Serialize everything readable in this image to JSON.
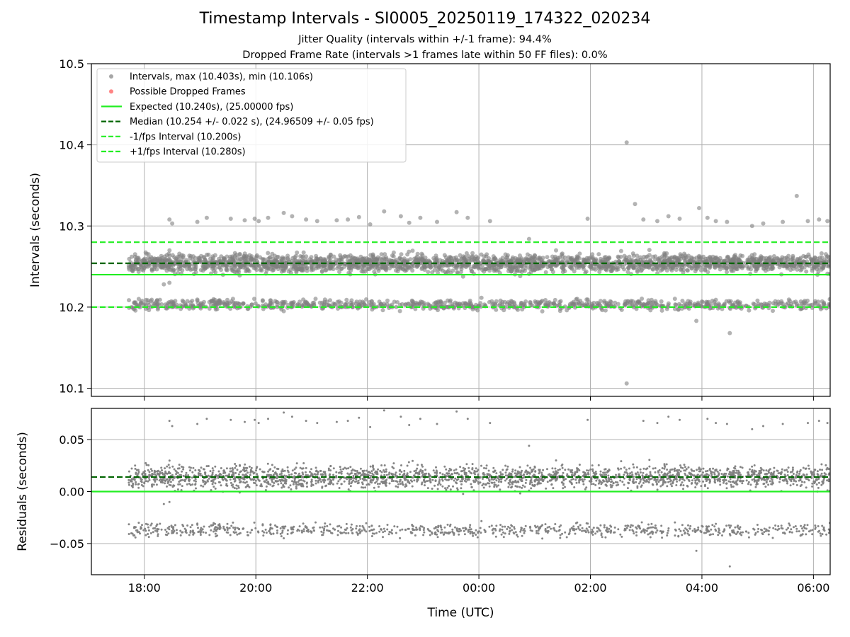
{
  "figure": {
    "title": "Timestamp Intervals - SI0005_20250119_174322_020234",
    "subtitle_1": "Jitter Quality (intervals within +/-1 frame): 94.4%",
    "subtitle_2": "Dropped Frame Rate (intervals >1 frames late within 50 FF files): 0.0%"
  },
  "colors": {
    "points": "#808080",
    "dropped": "#ff5050",
    "expected": "#22ee22",
    "median": "#006400",
    "fps_interval": "#22ee22",
    "grid": "#b0b0b0"
  },
  "chart_data": [
    {
      "type": "scatter",
      "panel": "top",
      "ylabel": "Intervals (seconds)",
      "xlabel": "",
      "x_unit": "hours (UTC, since 2025-01-19 00:00)",
      "xlim": [
        17.05,
        30.3
      ],
      "ylim": [
        10.09,
        10.5
      ],
      "xticks": [
        18,
        20,
        22,
        24,
        26,
        28,
        30
      ],
      "xtick_labels": [
        "18:00",
        "20:00",
        "22:00",
        "00:00",
        "02:00",
        "04:00",
        "06:00"
      ],
      "yticks": [
        10.1,
        10.2,
        10.3,
        10.4,
        10.5
      ],
      "ytick_labels": [
        "10.1",
        "10.2",
        "10.3",
        "10.4",
        "10.5"
      ],
      "grid": true,
      "legend_position": "top-left",
      "legend": [
        {
          "label": "Intervals, max (10.403s), min (10.106s)",
          "kind": "marker",
          "color": "#808080"
        },
        {
          "label": "Possible Dropped Frames",
          "kind": "marker",
          "color": "#ff5050"
        },
        {
          "label": "Expected (10.240s), (25.00000 fps)",
          "kind": "solid",
          "color": "#22ee22"
        },
        {
          "label": "Median (10.254 +/- 0.022 s), (24.96509 +/- 0.05 fps)",
          "kind": "dashed",
          "color": "#006400"
        },
        {
          "label": "-1/fps Interval (10.200s)",
          "kind": "dashed",
          "color": "#22ee22"
        },
        {
          "label": "+1/fps Interval (10.280s)",
          "kind": "dashed",
          "color": "#22ee22"
        }
      ],
      "reference_lines": [
        {
          "name": "Expected",
          "y": 10.24,
          "style": "solid",
          "color": "#22ee22"
        },
        {
          "name": "Median",
          "y": 10.254,
          "style": "dashed",
          "color": "#006400"
        },
        {
          "name": "-1/fps Interval",
          "y": 10.2,
          "style": "dashed",
          "color": "#22ee22"
        },
        {
          "name": "+1/fps Interval",
          "y": 10.28,
          "style": "dashed",
          "color": "#22ee22"
        }
      ],
      "series": [
        {
          "name": "Intervals",
          "x_range": [
            17.72,
            30.3
          ],
          "main_band": {
            "center": 10.254,
            "spread": 0.012,
            "approx_count": 2300
          },
          "lower_band": {
            "center": 10.203,
            "spread": 0.007,
            "approx_count": 850
          },
          "extremes": {
            "max": 10.403,
            "min": 10.106
          },
          "outliers": [
            {
              "x": 18.45,
              "y": 10.308
            },
            {
              "x": 18.5,
              "y": 10.303
            },
            {
              "x": 18.95,
              "y": 10.305
            },
            {
              "x": 19.12,
              "y": 10.31
            },
            {
              "x": 19.55,
              "y": 10.309
            },
            {
              "x": 19.8,
              "y": 10.307
            },
            {
              "x": 19.98,
              "y": 10.309
            },
            {
              "x": 20.05,
              "y": 10.306
            },
            {
              "x": 20.22,
              "y": 10.31
            },
            {
              "x": 20.5,
              "y": 10.316
            },
            {
              "x": 20.65,
              "y": 10.312
            },
            {
              "x": 20.9,
              "y": 10.308
            },
            {
              "x": 21.1,
              "y": 10.306
            },
            {
              "x": 21.45,
              "y": 10.307
            },
            {
              "x": 21.65,
              "y": 10.308
            },
            {
              "x": 21.85,
              "y": 10.311
            },
            {
              "x": 22.05,
              "y": 10.302
            },
            {
              "x": 22.3,
              "y": 10.318
            },
            {
              "x": 22.6,
              "y": 10.312
            },
            {
              "x": 22.75,
              "y": 10.304
            },
            {
              "x": 22.95,
              "y": 10.31
            },
            {
              "x": 23.25,
              "y": 10.305
            },
            {
              "x": 23.6,
              "y": 10.317
            },
            {
              "x": 23.8,
              "y": 10.31
            },
            {
              "x": 24.2,
              "y": 10.306
            },
            {
              "x": 24.9,
              "y": 10.284
            },
            {
              "x": 25.95,
              "y": 10.309
            },
            {
              "x": 26.65,
              "y": 10.403
            },
            {
              "x": 26.8,
              "y": 10.327
            },
            {
              "x": 26.95,
              "y": 10.308
            },
            {
              "x": 27.2,
              "y": 10.306
            },
            {
              "x": 27.4,
              "y": 10.312
            },
            {
              "x": 27.6,
              "y": 10.309
            },
            {
              "x": 27.95,
              "y": 10.322
            },
            {
              "x": 28.1,
              "y": 10.31
            },
            {
              "x": 28.25,
              "y": 10.306
            },
            {
              "x": 28.45,
              "y": 10.305
            },
            {
              "x": 28.9,
              "y": 10.3
            },
            {
              "x": 29.1,
              "y": 10.303
            },
            {
              "x": 29.45,
              "y": 10.305
            },
            {
              "x": 29.7,
              "y": 10.337
            },
            {
              "x": 29.9,
              "y": 10.306
            },
            {
              "x": 30.1,
              "y": 10.308
            },
            {
              "x": 30.25,
              "y": 10.306
            },
            {
              "x": 17.9,
              "y": 10.21
            },
            {
              "x": 18.35,
              "y": 10.228
            },
            {
              "x": 18.45,
              "y": 10.23
            },
            {
              "x": 27.9,
              "y": 10.183
            },
            {
              "x": 28.5,
              "y": 10.168
            },
            {
              "x": 26.65,
              "y": 10.106
            }
          ]
        },
        {
          "name": "Possible Dropped Frames",
          "points": []
        }
      ]
    },
    {
      "type": "scatter",
      "panel": "bottom",
      "ylabel": "Residuals (seconds)",
      "xlabel": "Time (UTC)",
      "x_unit": "hours (UTC, since 2025-01-19 00:00)",
      "xlim": [
        17.05,
        30.3
      ],
      "ylim": [
        -0.08,
        0.08
      ],
      "xticks": [
        18,
        20,
        22,
        24,
        26,
        28,
        30
      ],
      "xtick_labels": [
        "18:00",
        "20:00",
        "22:00",
        "00:00",
        "02:00",
        "04:00",
        "06:00"
      ],
      "yticks": [
        -0.05,
        0.0,
        0.05
      ],
      "ytick_labels": [
        "−0.05",
        "0.00",
        "0.05"
      ],
      "grid": true,
      "reference_lines": [
        {
          "name": "Expected",
          "y": 0.0,
          "style": "solid",
          "color": "#22ee22"
        },
        {
          "name": "Median",
          "y": 0.014,
          "style": "dashed",
          "color": "#006400"
        }
      ],
      "series": [
        {
          "name": "Residuals",
          "x_range": [
            17.72,
            30.3
          ],
          "main_band": {
            "center": 0.014,
            "spread": 0.012,
            "approx_count": 2300
          },
          "lower_band": {
            "center": -0.037,
            "spread": 0.007,
            "approx_count": 850
          }
        }
      ]
    }
  ]
}
